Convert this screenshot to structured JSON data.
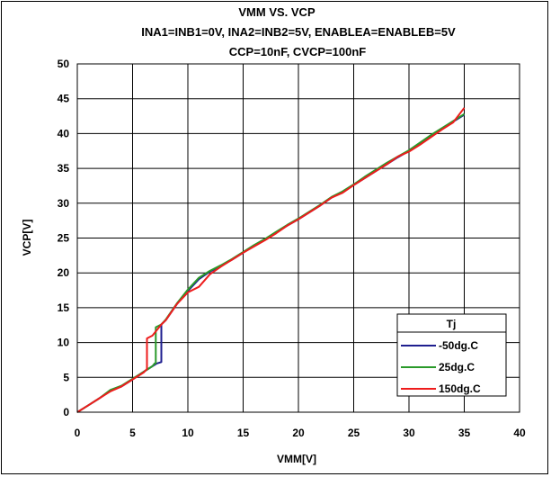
{
  "chart_data": {
    "type": "line",
    "title": "VMM VS. VCP",
    "subtitle_lines": [
      "INA1=INB1=0V, INA2=INB2=5V, ENABLEA=ENABLEB=5V",
      "CCP=10nF, CVCP=100nF"
    ],
    "xlabel": "VMM[V]",
    "ylabel": "VCP[V]",
    "xlim": [
      0,
      40
    ],
    "ylim": [
      0,
      50
    ],
    "xticks": [
      0,
      5,
      10,
      15,
      20,
      25,
      30,
      35,
      40
    ],
    "yticks": [
      0,
      5,
      10,
      15,
      20,
      25,
      30,
      35,
      40,
      45,
      50
    ],
    "grid": true,
    "legend": {
      "title": "Tj",
      "placement": "bottom-right"
    },
    "series": [
      {
        "name": "-50dg.C",
        "color": "#1f1f8f",
        "points": [
          [
            0,
            0
          ],
          [
            1,
            1
          ],
          [
            2,
            2
          ],
          [
            3,
            3.1
          ],
          [
            4,
            3.7
          ],
          [
            5,
            4.7
          ],
          [
            6,
            5.8
          ],
          [
            6.8,
            6.6
          ],
          [
            7.2,
            7.0
          ],
          [
            7.6,
            7.2
          ],
          [
            7.6,
            12.6
          ],
          [
            8,
            13.2
          ],
          [
            9,
            15.5
          ],
          [
            10,
            17.4
          ],
          [
            11,
            19.1
          ],
          [
            12,
            20.2
          ],
          [
            13,
            21.0
          ],
          [
            14,
            21.9
          ],
          [
            15,
            22.9
          ],
          [
            16,
            23.9
          ],
          [
            17,
            24.8
          ],
          [
            18,
            25.8
          ],
          [
            19,
            26.8
          ],
          [
            20,
            27.7
          ],
          [
            21,
            28.7
          ],
          [
            22,
            29.7
          ],
          [
            23,
            30.8
          ],
          [
            24,
            31.6
          ],
          [
            25,
            32.6
          ],
          [
            26,
            33.6
          ],
          [
            27,
            34.6
          ],
          [
            28,
            35.6
          ],
          [
            29,
            36.6
          ],
          [
            30,
            37.5
          ],
          [
            31,
            38.6
          ],
          [
            32,
            39.7
          ],
          [
            33,
            40.7
          ],
          [
            34,
            41.7
          ],
          [
            35,
            42.7
          ]
        ]
      },
      {
        "name": "25dg.C",
        "color": "#2a9a2a",
        "points": [
          [
            0,
            0
          ],
          [
            1,
            1
          ],
          [
            2,
            2
          ],
          [
            3,
            3.2
          ],
          [
            4,
            3.8
          ],
          [
            5,
            4.8
          ],
          [
            6,
            5.8
          ],
          [
            6.8,
            6.6
          ],
          [
            7.0,
            7.0
          ],
          [
            7.1,
            7.0
          ],
          [
            7.1,
            12.2
          ],
          [
            7.6,
            12.6
          ],
          [
            8,
            13.3
          ],
          [
            9,
            15.6
          ],
          [
            10,
            17.6
          ],
          [
            11,
            19.3
          ],
          [
            12,
            20.3
          ],
          [
            13,
            21.1
          ],
          [
            14,
            22.0
          ],
          [
            15,
            23.0
          ],
          [
            16,
            24.0
          ],
          [
            17,
            24.9
          ],
          [
            18,
            25.9
          ],
          [
            19,
            26.9
          ],
          [
            20,
            27.8
          ],
          [
            21,
            28.8
          ],
          [
            22,
            29.8
          ],
          [
            23,
            30.9
          ],
          [
            24,
            31.7
          ],
          [
            25,
            32.7
          ],
          [
            26,
            33.8
          ],
          [
            27,
            34.8
          ],
          [
            28,
            35.8
          ],
          [
            29,
            36.7
          ],
          [
            30,
            37.6
          ],
          [
            31,
            38.7
          ],
          [
            32,
            39.8
          ],
          [
            33,
            40.8
          ],
          [
            34,
            41.8
          ],
          [
            35,
            42.8
          ]
        ]
      },
      {
        "name": "150dg.C",
        "color": "#ee1c1c",
        "points": [
          [
            0,
            0
          ],
          [
            1,
            1
          ],
          [
            2,
            2
          ],
          [
            3,
            3.0
          ],
          [
            4,
            3.7
          ],
          [
            5,
            4.7
          ],
          [
            6,
            5.7
          ],
          [
            6.3,
            6.2
          ],
          [
            6.3,
            10.6
          ],
          [
            6.8,
            11.0
          ],
          [
            7.6,
            12.6
          ],
          [
            8,
            13.2
          ],
          [
            9,
            15.5
          ],
          [
            10,
            17.2
          ],
          [
            11,
            18.0
          ],
          [
            12,
            19.8
          ],
          [
            13,
            20.9
          ],
          [
            14,
            21.9
          ],
          [
            15,
            22.9
          ],
          [
            16,
            23.8
          ],
          [
            17,
            24.7
          ],
          [
            18,
            25.7
          ],
          [
            19,
            26.8
          ],
          [
            20,
            27.7
          ],
          [
            21,
            28.7
          ],
          [
            22,
            29.7
          ],
          [
            23,
            30.8
          ],
          [
            24,
            31.5
          ],
          [
            25,
            32.6
          ],
          [
            26,
            33.6
          ],
          [
            27,
            34.6
          ],
          [
            28,
            35.6
          ],
          [
            29,
            36.7
          ],
          [
            30,
            37.4
          ],
          [
            31,
            38.4
          ],
          [
            32,
            39.5
          ],
          [
            33,
            40.6
          ],
          [
            34,
            41.6
          ],
          [
            35,
            43.7
          ]
        ]
      }
    ]
  }
}
